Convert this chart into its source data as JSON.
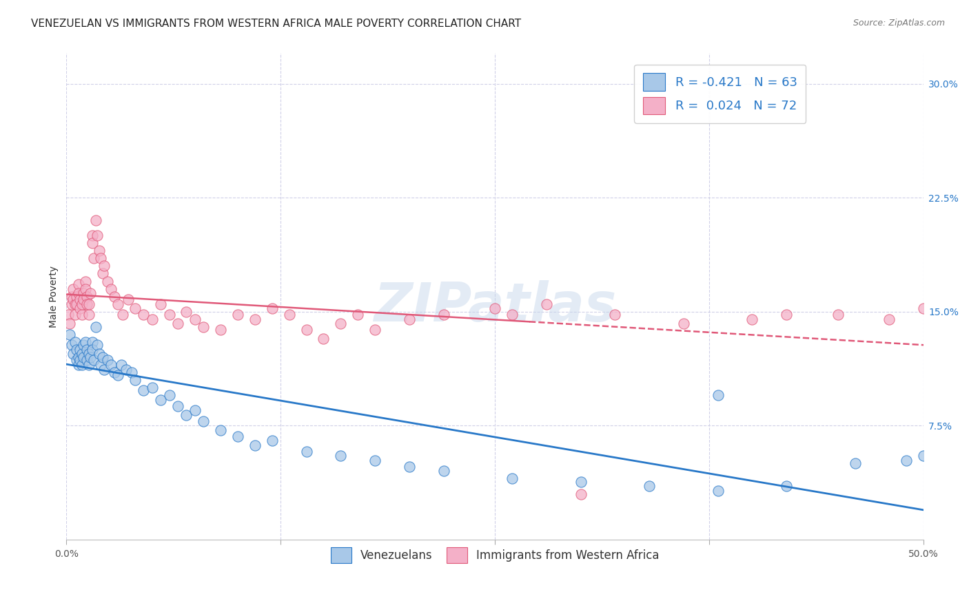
{
  "title": "VENEZUELAN VS IMMIGRANTS FROM WESTERN AFRICA MALE POVERTY CORRELATION CHART",
  "source": "Source: ZipAtlas.com",
  "ylabel": "Male Poverty",
  "xlim": [
    0.0,
    0.5
  ],
  "ylim": [
    0.0,
    0.32
  ],
  "legend_r1": "R = -0.421",
  "legend_n1": "N = 63",
  "legend_r2": "R =  0.024",
  "legend_n2": "N = 72",
  "color_blue": "#a8c8e8",
  "color_pink": "#f4b0c8",
  "line_color_blue": "#2878c8",
  "line_color_pink": "#e05878",
  "watermark": "ZIPatlas",
  "venezuelans_x": [
    0.002,
    0.003,
    0.004,
    0.005,
    0.006,
    0.006,
    0.007,
    0.007,
    0.008,
    0.008,
    0.009,
    0.009,
    0.01,
    0.01,
    0.011,
    0.012,
    0.012,
    0.013,
    0.013,
    0.014,
    0.015,
    0.015,
    0.016,
    0.017,
    0.018,
    0.019,
    0.02,
    0.021,
    0.022,
    0.024,
    0.026,
    0.028,
    0.03,
    0.032,
    0.035,
    0.038,
    0.04,
    0.045,
    0.05,
    0.055,
    0.06,
    0.065,
    0.07,
    0.075,
    0.08,
    0.09,
    0.1,
    0.11,
    0.12,
    0.14,
    0.16,
    0.18,
    0.2,
    0.22,
    0.26,
    0.3,
    0.34,
    0.38,
    0.42,
    0.46,
    0.49,
    0.5,
    0.38
  ],
  "venezuelans_y": [
    0.135,
    0.128,
    0.122,
    0.13,
    0.125,
    0.118,
    0.12,
    0.115,
    0.125,
    0.118,
    0.122,
    0.115,
    0.128,
    0.12,
    0.13,
    0.125,
    0.118,
    0.122,
    0.115,
    0.12,
    0.13,
    0.125,
    0.118,
    0.14,
    0.128,
    0.122,
    0.115,
    0.12,
    0.112,
    0.118,
    0.115,
    0.11,
    0.108,
    0.115,
    0.112,
    0.11,
    0.105,
    0.098,
    0.1,
    0.092,
    0.095,
    0.088,
    0.082,
    0.085,
    0.078,
    0.072,
    0.068,
    0.062,
    0.065,
    0.058,
    0.055,
    0.052,
    0.048,
    0.045,
    0.04,
    0.038,
    0.035,
    0.032,
    0.035,
    0.05,
    0.052,
    0.055,
    0.095
  ],
  "western_africa_x": [
    0.001,
    0.002,
    0.003,
    0.003,
    0.004,
    0.004,
    0.005,
    0.005,
    0.006,
    0.006,
    0.007,
    0.007,
    0.008,
    0.008,
    0.009,
    0.009,
    0.01,
    0.01,
    0.011,
    0.011,
    0.012,
    0.012,
    0.013,
    0.013,
    0.014,
    0.015,
    0.015,
    0.016,
    0.017,
    0.018,
    0.019,
    0.02,
    0.021,
    0.022,
    0.024,
    0.026,
    0.028,
    0.03,
    0.033,
    0.036,
    0.04,
    0.045,
    0.05,
    0.055,
    0.06,
    0.065,
    0.07,
    0.075,
    0.08,
    0.09,
    0.1,
    0.11,
    0.12,
    0.13,
    0.14,
    0.15,
    0.16,
    0.17,
    0.18,
    0.2,
    0.22,
    0.25,
    0.28,
    0.32,
    0.36,
    0.4,
    0.42,
    0.45,
    0.48,
    0.5,
    0.26,
    0.3
  ],
  "western_africa_y": [
    0.148,
    0.142,
    0.155,
    0.16,
    0.165,
    0.158,
    0.155,
    0.148,
    0.16,
    0.155,
    0.168,
    0.162,
    0.158,
    0.152,
    0.148,
    0.155,
    0.162,
    0.158,
    0.17,
    0.165,
    0.16,
    0.155,
    0.148,
    0.155,
    0.162,
    0.2,
    0.195,
    0.185,
    0.21,
    0.2,
    0.19,
    0.185,
    0.175,
    0.18,
    0.17,
    0.165,
    0.16,
    0.155,
    0.148,
    0.158,
    0.152,
    0.148,
    0.145,
    0.155,
    0.148,
    0.142,
    0.15,
    0.145,
    0.14,
    0.138,
    0.148,
    0.145,
    0.152,
    0.148,
    0.138,
    0.132,
    0.142,
    0.148,
    0.138,
    0.145,
    0.148,
    0.152,
    0.155,
    0.148,
    0.142,
    0.145,
    0.148,
    0.148,
    0.145,
    0.152,
    0.148,
    0.03
  ],
  "background_color": "#ffffff",
  "grid_color": "#d0d0e8",
  "title_fontsize": 11,
  "axis_label_fontsize": 10,
  "tick_fontsize": 10,
  "legend_fontsize": 13,
  "source_fontsize": 9
}
